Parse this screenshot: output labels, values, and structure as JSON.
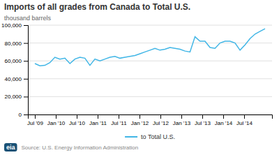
{
  "chart_data": {
    "type": "line",
    "title": "Imports of all grades from Canada to Total U.S.",
    "ylabel": "thousand barrels",
    "annotations": [
      "Source: U.S. Energy Information Administration",
      "eia"
    ],
    "x": [
      0,
      1.434783,
      2.869565,
      4.304348,
      5.73913,
      7.173913,
      8.608696,
      10.043478,
      11.478261,
      12.913043,
      14.347826,
      15.782609,
      17.217391,
      18.652174,
      20.086957,
      21.521739,
      22.956522,
      24.391304,
      25.826087,
      27.26087,
      28.695652,
      30.130435,
      31.565217,
      33,
      34.434783,
      35.869565,
      37.304348,
      38.73913,
      40.173913,
      41.608696,
      43.043478,
      44.478261,
      45.913043,
      47.347826,
      48.782609,
      50.217391,
      51.652174,
      53.086957,
      54.521739,
      55.956522,
      57.391304,
      58.826087,
      60.26087,
      61.695652,
      63.130435,
      64.565217,
      66
    ],
    "series": [
      {
        "name": "to Total U.S.",
        "color": "#41b6e6",
        "values": [
          57000,
          54500,
          55000,
          58000,
          64000,
          62000,
          63000,
          57000,
          62000,
          64000,
          63000,
          55000,
          62000,
          60000,
          62000,
          64000,
          65000,
          63000,
          64000,
          65000,
          66000,
          68000,
          70000,
          72000,
          74000,
          72000,
          73000,
          75000,
          74000,
          73000,
          71000,
          70000,
          87000,
          82000,
          82000,
          75000,
          74000,
          80000,
          82000,
          82000,
          80000,
          72000,
          78000,
          85000,
          90000,
          93000,
          96000
        ]
      }
    ],
    "xlim": [
      -2,
      68
    ],
    "xticks": [
      {
        "value": 0,
        "label": "Jul '09"
      },
      {
        "value": 6,
        "label": "Jan '10"
      },
      {
        "value": 12,
        "label": "Jul '10"
      },
      {
        "value": 18,
        "label": "Jan '11"
      },
      {
        "value": 24,
        "label": "Jul '11"
      },
      {
        "value": 30,
        "label": "Jan '12"
      },
      {
        "value": 36,
        "label": "Jul '12"
      },
      {
        "value": 42,
        "label": "Jan '13"
      },
      {
        "value": 48,
        "label": "Jul '13"
      },
      {
        "value": 54,
        "label": "Jan '14"
      },
      {
        "value": 60,
        "label": "Jul '14"
      }
    ],
    "ylim": [
      0,
      100000
    ],
    "yticks": [
      0,
      {
        "value": 20000,
        "label": "20,000"
      },
      {
        "value": 40000,
        "label": "40,000"
      },
      {
        "value": 60000,
        "label": "60,000"
      },
      {
        "value": 80000,
        "label": "80,000"
      },
      {
        "value": 100000,
        "label": "100,000"
      }
    ],
    "grid": true,
    "legend": "bottom"
  }
}
